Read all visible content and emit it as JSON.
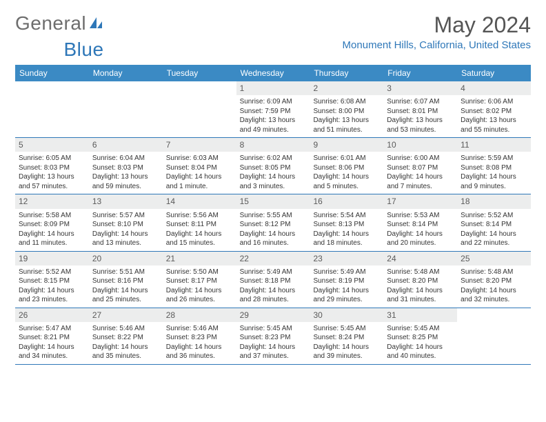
{
  "brand": {
    "part1": "General",
    "part2": "Blue"
  },
  "title": "May 2024",
  "location": "Monument Hills, California, United States",
  "colors": {
    "header_bg": "#3b8ac4",
    "accent": "#2e77b8",
    "daynum_bg": "#eceded",
    "text": "#333333",
    "brand_gray": "#6d6d6d"
  },
  "day_names": [
    "Sunday",
    "Monday",
    "Tuesday",
    "Wednesday",
    "Thursday",
    "Friday",
    "Saturday"
  ],
  "weeks": [
    [
      {
        "n": ""
      },
      {
        "n": ""
      },
      {
        "n": ""
      },
      {
        "n": "1",
        "sr": "Sunrise: 6:09 AM",
        "ss": "Sunset: 7:59 PM",
        "dl1": "Daylight: 13 hours",
        "dl2": "and 49 minutes."
      },
      {
        "n": "2",
        "sr": "Sunrise: 6:08 AM",
        "ss": "Sunset: 8:00 PM",
        "dl1": "Daylight: 13 hours",
        "dl2": "and 51 minutes."
      },
      {
        "n": "3",
        "sr": "Sunrise: 6:07 AM",
        "ss": "Sunset: 8:01 PM",
        "dl1": "Daylight: 13 hours",
        "dl2": "and 53 minutes."
      },
      {
        "n": "4",
        "sr": "Sunrise: 6:06 AM",
        "ss": "Sunset: 8:02 PM",
        "dl1": "Daylight: 13 hours",
        "dl2": "and 55 minutes."
      }
    ],
    [
      {
        "n": "5",
        "sr": "Sunrise: 6:05 AM",
        "ss": "Sunset: 8:03 PM",
        "dl1": "Daylight: 13 hours",
        "dl2": "and 57 minutes."
      },
      {
        "n": "6",
        "sr": "Sunrise: 6:04 AM",
        "ss": "Sunset: 8:03 PM",
        "dl1": "Daylight: 13 hours",
        "dl2": "and 59 minutes."
      },
      {
        "n": "7",
        "sr": "Sunrise: 6:03 AM",
        "ss": "Sunset: 8:04 PM",
        "dl1": "Daylight: 14 hours",
        "dl2": "and 1 minute."
      },
      {
        "n": "8",
        "sr": "Sunrise: 6:02 AM",
        "ss": "Sunset: 8:05 PM",
        "dl1": "Daylight: 14 hours",
        "dl2": "and 3 minutes."
      },
      {
        "n": "9",
        "sr": "Sunrise: 6:01 AM",
        "ss": "Sunset: 8:06 PM",
        "dl1": "Daylight: 14 hours",
        "dl2": "and 5 minutes."
      },
      {
        "n": "10",
        "sr": "Sunrise: 6:00 AM",
        "ss": "Sunset: 8:07 PM",
        "dl1": "Daylight: 14 hours",
        "dl2": "and 7 minutes."
      },
      {
        "n": "11",
        "sr": "Sunrise: 5:59 AM",
        "ss": "Sunset: 8:08 PM",
        "dl1": "Daylight: 14 hours",
        "dl2": "and 9 minutes."
      }
    ],
    [
      {
        "n": "12",
        "sr": "Sunrise: 5:58 AM",
        "ss": "Sunset: 8:09 PM",
        "dl1": "Daylight: 14 hours",
        "dl2": "and 11 minutes."
      },
      {
        "n": "13",
        "sr": "Sunrise: 5:57 AM",
        "ss": "Sunset: 8:10 PM",
        "dl1": "Daylight: 14 hours",
        "dl2": "and 13 minutes."
      },
      {
        "n": "14",
        "sr": "Sunrise: 5:56 AM",
        "ss": "Sunset: 8:11 PM",
        "dl1": "Daylight: 14 hours",
        "dl2": "and 15 minutes."
      },
      {
        "n": "15",
        "sr": "Sunrise: 5:55 AM",
        "ss": "Sunset: 8:12 PM",
        "dl1": "Daylight: 14 hours",
        "dl2": "and 16 minutes."
      },
      {
        "n": "16",
        "sr": "Sunrise: 5:54 AM",
        "ss": "Sunset: 8:13 PM",
        "dl1": "Daylight: 14 hours",
        "dl2": "and 18 minutes."
      },
      {
        "n": "17",
        "sr": "Sunrise: 5:53 AM",
        "ss": "Sunset: 8:14 PM",
        "dl1": "Daylight: 14 hours",
        "dl2": "and 20 minutes."
      },
      {
        "n": "18",
        "sr": "Sunrise: 5:52 AM",
        "ss": "Sunset: 8:14 PM",
        "dl1": "Daylight: 14 hours",
        "dl2": "and 22 minutes."
      }
    ],
    [
      {
        "n": "19",
        "sr": "Sunrise: 5:52 AM",
        "ss": "Sunset: 8:15 PM",
        "dl1": "Daylight: 14 hours",
        "dl2": "and 23 minutes."
      },
      {
        "n": "20",
        "sr": "Sunrise: 5:51 AM",
        "ss": "Sunset: 8:16 PM",
        "dl1": "Daylight: 14 hours",
        "dl2": "and 25 minutes."
      },
      {
        "n": "21",
        "sr": "Sunrise: 5:50 AM",
        "ss": "Sunset: 8:17 PM",
        "dl1": "Daylight: 14 hours",
        "dl2": "and 26 minutes."
      },
      {
        "n": "22",
        "sr": "Sunrise: 5:49 AM",
        "ss": "Sunset: 8:18 PM",
        "dl1": "Daylight: 14 hours",
        "dl2": "and 28 minutes."
      },
      {
        "n": "23",
        "sr": "Sunrise: 5:49 AM",
        "ss": "Sunset: 8:19 PM",
        "dl1": "Daylight: 14 hours",
        "dl2": "and 29 minutes."
      },
      {
        "n": "24",
        "sr": "Sunrise: 5:48 AM",
        "ss": "Sunset: 8:20 PM",
        "dl1": "Daylight: 14 hours",
        "dl2": "and 31 minutes."
      },
      {
        "n": "25",
        "sr": "Sunrise: 5:48 AM",
        "ss": "Sunset: 8:20 PM",
        "dl1": "Daylight: 14 hours",
        "dl2": "and 32 minutes."
      }
    ],
    [
      {
        "n": "26",
        "sr": "Sunrise: 5:47 AM",
        "ss": "Sunset: 8:21 PM",
        "dl1": "Daylight: 14 hours",
        "dl2": "and 34 minutes."
      },
      {
        "n": "27",
        "sr": "Sunrise: 5:46 AM",
        "ss": "Sunset: 8:22 PM",
        "dl1": "Daylight: 14 hours",
        "dl2": "and 35 minutes."
      },
      {
        "n": "28",
        "sr": "Sunrise: 5:46 AM",
        "ss": "Sunset: 8:23 PM",
        "dl1": "Daylight: 14 hours",
        "dl2": "and 36 minutes."
      },
      {
        "n": "29",
        "sr": "Sunrise: 5:45 AM",
        "ss": "Sunset: 8:23 PM",
        "dl1": "Daylight: 14 hours",
        "dl2": "and 37 minutes."
      },
      {
        "n": "30",
        "sr": "Sunrise: 5:45 AM",
        "ss": "Sunset: 8:24 PM",
        "dl1": "Daylight: 14 hours",
        "dl2": "and 39 minutes."
      },
      {
        "n": "31",
        "sr": "Sunrise: 5:45 AM",
        "ss": "Sunset: 8:25 PM",
        "dl1": "Daylight: 14 hours",
        "dl2": "and 40 minutes."
      },
      {
        "n": ""
      }
    ]
  ]
}
